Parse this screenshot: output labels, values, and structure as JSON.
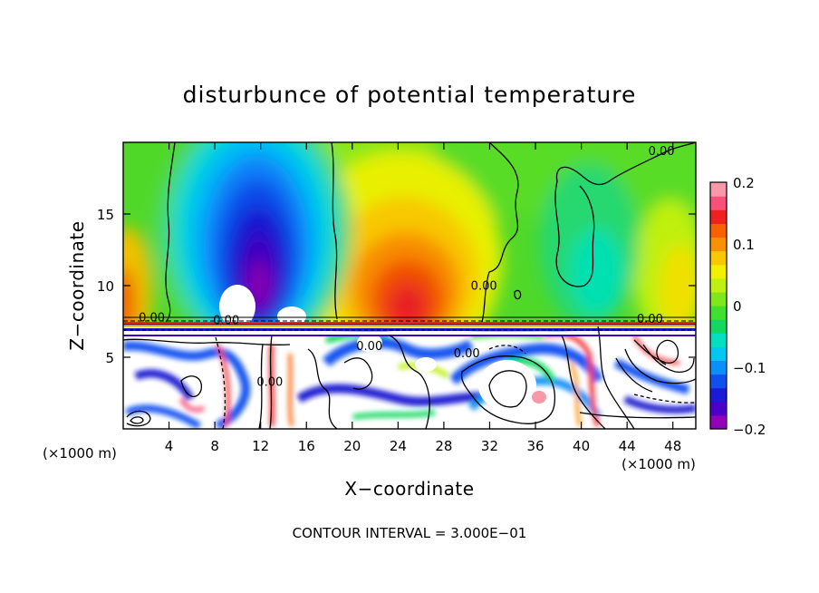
{
  "chart_data": {
    "type": "heatmap",
    "title": "disturbunce of potential temperature",
    "xlabel": "X−coordinate",
    "ylabel": "Z−coordinate",
    "x_unit_left": "(×1000 m)",
    "x_unit_right": "(×1000 m)",
    "xlim": [
      0,
      50
    ],
    "ylim": [
      0,
      20
    ],
    "x_ticks": [
      4,
      8,
      12,
      16,
      20,
      24,
      28,
      32,
      36,
      40,
      44,
      48
    ],
    "y_ticks": [
      5,
      10,
      15
    ],
    "colorbar": {
      "range": [
        -0.2,
        0.2
      ],
      "ticks": [
        {
          "value": 0.2,
          "label": "0.2"
        },
        {
          "value": 0.1,
          "label": "0.1"
        },
        {
          "value": 0,
          "label": "0"
        },
        {
          "value": -0.1,
          "label": "−0.1"
        },
        {
          "value": -0.2,
          "label": "−0.2"
        }
      ],
      "colors": [
        "#9400b8",
        "#4a00c8",
        "#1a1ad8",
        "#1050f0",
        "#0a90f8",
        "#00c8f0",
        "#00e0c0",
        "#10d860",
        "#40e030",
        "#80e818",
        "#c0f010",
        "#f0f000",
        "#f8c800",
        "#f89000",
        "#f86000",
        "#f02020",
        "#f85078",
        "#f898a8"
      ]
    },
    "contour_labels": [
      {
        "x": 47.0,
        "z": 19.1,
        "text": "0.00"
      },
      {
        "x": 2.5,
        "z": 7.5,
        "text": "0.00"
      },
      {
        "x": 9.0,
        "z": 7.3,
        "text": "0.00"
      },
      {
        "x": 31.5,
        "z": 9.7,
        "text": "0.00"
      },
      {
        "x": 46.0,
        "z": 7.4,
        "text": "0.00"
      },
      {
        "x": 21.5,
        "z": 5.5,
        "text": "0.00"
      },
      {
        "x": 30.0,
        "z": 5.0,
        "text": "0.00"
      },
      {
        "x": 12.8,
        "z": 3.0,
        "text": "0.00"
      }
    ],
    "contour_interval_text": "CONTOUR INTERVAL =  3.000E−01"
  }
}
